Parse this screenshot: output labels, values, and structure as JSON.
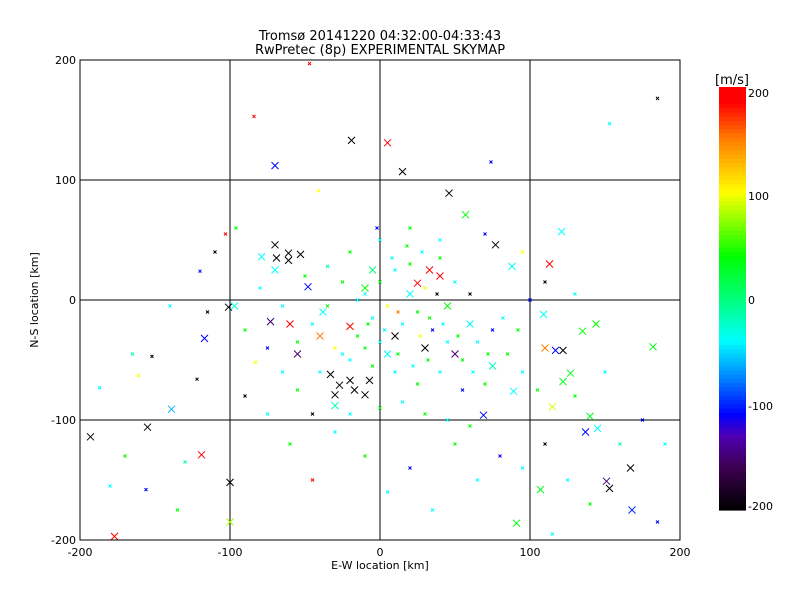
{
  "chart_data": {
    "type": "scatter",
    "title": "Tromsø 20141220 04:32:00-04:33:43",
    "subtitle": "RwPretec (8p) EXPERIMENTAL SKYMAP",
    "xlabel": "E-W location [km]",
    "ylabel": "N-S location [km]",
    "xlim": [
      -200,
      200
    ],
    "ylim": [
      -200,
      200
    ],
    "xticks": [
      "-200",
      "-100",
      "0",
      "100",
      "200"
    ],
    "yticks": [
      "-200",
      "-100",
      "0",
      "100",
      "200"
    ],
    "grid": true,
    "colorbar": {
      "label": "[m/s]",
      "range": [
        -200,
        200
      ],
      "ticks": [
        "200",
        "100",
        "0",
        "-100",
        "-200"
      ],
      "stops": [
        [
          -200,
          "#000000"
        ],
        [
          -160,
          "#3c0050"
        ],
        [
          -130,
          "#5000b4"
        ],
        [
          -110,
          "#0000ff"
        ],
        [
          -70,
          "#0096ff"
        ],
        [
          -40,
          "#00ffff"
        ],
        [
          0,
          "#00ff78"
        ],
        [
          40,
          "#00ff00"
        ],
        [
          100,
          "#ffff00"
        ],
        [
          150,
          "#ff8000"
        ],
        [
          185,
          "#ff0000"
        ],
        [
          200,
          "#ff0000"
        ]
      ]
    },
    "crosses": [
      [
        -177,
        -197,
        200
      ],
      [
        -19,
        133,
        -200
      ],
      [
        5,
        131,
        200
      ],
      [
        -70,
        112,
        -110
      ],
      [
        15,
        107,
        -200
      ],
      [
        46,
        89,
        -200
      ],
      [
        -193,
        -114,
        -200
      ],
      [
        -155,
        -106,
        -200
      ],
      [
        -139,
        -91,
        -60
      ],
      [
        -117,
        -32,
        -110
      ],
      [
        -101,
        -6,
        -200
      ],
      [
        -97,
        -5,
        -30
      ],
      [
        -100,
        -152,
        -200
      ],
      [
        -100,
        -185,
        80
      ],
      [
        -119,
        -129,
        200
      ],
      [
        113,
        30,
        200
      ],
      [
        121,
        57,
        -40
      ],
      [
        167,
        -140,
        -200
      ],
      [
        153,
        -157,
        -200
      ],
      [
        151,
        -151,
        -150
      ],
      [
        168,
        -175,
        -100
      ],
      [
        91,
        -186,
        40
      ],
      [
        107,
        -158,
        30
      ],
      [
        57,
        71,
        40
      ],
      [
        77,
        46,
        -200
      ],
      [
        88,
        28,
        -40
      ],
      [
        109,
        -12,
        -40
      ],
      [
        110,
        -40,
        150
      ],
      [
        122,
        -42,
        -200
      ],
      [
        117,
        -42,
        -110
      ],
      [
        135,
        -26,
        40
      ],
      [
        144,
        -20,
        40
      ],
      [
        182,
        -39,
        40
      ],
      [
        127,
        -61,
        30
      ],
      [
        122,
        -68,
        30
      ],
      [
        140,
        -97,
        30
      ],
      [
        145,
        -107,
        -40
      ],
      [
        137,
        -110,
        -110
      ],
      [
        89,
        -76,
        -40
      ],
      [
        69,
        -96,
        -110
      ],
      [
        115,
        -89,
        90
      ],
      [
        -70,
        46,
        -200
      ],
      [
        -61,
        39,
        -200
      ],
      [
        -53,
        38,
        -200
      ],
      [
        -69,
        35,
        -200
      ],
      [
        -61,
        33,
        -200
      ],
      [
        -70,
        25,
        -40
      ],
      [
        -48,
        11,
        -110
      ],
      [
        -79,
        36,
        -40
      ],
      [
        -33,
        -62,
        -200
      ],
      [
        -27,
        -71,
        -200
      ],
      [
        -17,
        -75,
        -200
      ],
      [
        -10,
        -79,
        -200
      ],
      [
        -20,
        -67,
        -200
      ],
      [
        -30,
        -79,
        -200
      ],
      [
        -7,
        -67,
        -200
      ],
      [
        33,
        25,
        200
      ],
      [
        40,
        20,
        200
      ],
      [
        25,
        14,
        200
      ],
      [
        -20,
        -22,
        200
      ],
      [
        10,
        -30,
        -200
      ],
      [
        30,
        -40,
        -200
      ],
      [
        -55,
        -45,
        -150
      ],
      [
        50,
        -45,
        -150
      ],
      [
        -5,
        25,
        0
      ],
      [
        20,
        5,
        -40
      ],
      [
        60,
        -20,
        -40
      ],
      [
        -40,
        -30,
        150
      ],
      [
        -73,
        -18,
        -150
      ],
      [
        -60,
        -20,
        200
      ],
      [
        75,
        -55,
        -20
      ],
      [
        -38,
        -10,
        -40
      ],
      [
        5,
        -45,
        -40
      ],
      [
        45,
        -5,
        40
      ],
      [
        -10,
        10,
        40
      ],
      [
        -30,
        -88,
        -20
      ]
    ],
    "dots": [
      [
        -84,
        153,
        200
      ],
      [
        -47,
        197,
        200
      ],
      [
        74,
        115,
        -110
      ],
      [
        -41,
        91,
        100
      ],
      [
        153,
        147,
        -40
      ],
      [
        185,
        168,
        -200
      ],
      [
        -156,
        -158,
        -110
      ],
      [
        -187,
        -73,
        -40
      ],
      [
        -161,
        -63,
        100
      ],
      [
        -152,
        -47,
        -200
      ],
      [
        -165,
        -45,
        -20
      ],
      [
        -130,
        -135,
        -20
      ],
      [
        -122,
        -66,
        -200
      ],
      [
        -90,
        -80,
        -200
      ],
      [
        -83,
        -52,
        100
      ],
      [
        -110,
        40,
        -200
      ],
      [
        -103,
        55,
        200
      ],
      [
        -96,
        60,
        40
      ],
      [
        -115,
        -10,
        -200
      ],
      [
        -120,
        24,
        -110
      ],
      [
        -140,
        -5,
        -40
      ],
      [
        -75,
        -95,
        -40
      ],
      [
        -60,
        -120,
        40
      ],
      [
        -45,
        -150,
        200
      ],
      [
        -30,
        -110,
        -40
      ],
      [
        -10,
        -130,
        40
      ],
      [
        5,
        -160,
        -40
      ],
      [
        20,
        -140,
        -110
      ],
      [
        35,
        -175,
        -40
      ],
      [
        50,
        -120,
        40
      ],
      [
        65,
        -150,
        -40
      ],
      [
        80,
        -130,
        -110
      ],
      [
        95,
        -140,
        -40
      ],
      [
        110,
        -120,
        -200
      ],
      [
        125,
        -150,
        -40
      ],
      [
        140,
        -170,
        40
      ],
      [
        160,
        -120,
        -20
      ],
      [
        175,
        -100,
        -110
      ],
      [
        130,
        -80,
        40
      ],
      [
        150,
        -60,
        -40
      ],
      [
        100,
        0,
        -110
      ],
      [
        110,
        15,
        -200
      ],
      [
        130,
        5,
        -40
      ],
      [
        95,
        40,
        100
      ],
      [
        70,
        55,
        -110
      ],
      [
        40,
        50,
        -40
      ],
      [
        20,
        60,
        40
      ],
      [
        0,
        50,
        -40
      ],
      [
        -20,
        40,
        40
      ],
      [
        -35,
        28,
        -20
      ],
      [
        -50,
        20,
        40
      ],
      [
        -80,
        10,
        -40
      ],
      [
        -90,
        -25,
        40
      ],
      [
        -75,
        -40,
        -110
      ],
      [
        -65,
        -60,
        -40
      ],
      [
        -55,
        -75,
        40
      ],
      [
        -45,
        -95,
        -200
      ],
      [
        -25,
        -45,
        -40
      ],
      [
        -15,
        -30,
        40
      ],
      [
        -5,
        -15,
        -40
      ],
      [
        5,
        -5,
        100
      ],
      [
        15,
        -20,
        -40
      ],
      [
        25,
        -10,
        40
      ],
      [
        35,
        -25,
        -110
      ],
      [
        45,
        -35,
        -40
      ],
      [
        55,
        -50,
        40
      ],
      [
        65,
        -35,
        -40
      ],
      [
        75,
        -25,
        -110
      ],
      [
        85,
        -45,
        40
      ],
      [
        95,
        -60,
        -40
      ],
      [
        105,
        -75,
        40
      ],
      [
        -10,
        5,
        -40
      ],
      [
        0,
        15,
        40
      ],
      [
        10,
        25,
        -40
      ],
      [
        20,
        30,
        40
      ],
      [
        30,
        10,
        100
      ],
      [
        40,
        35,
        40
      ],
      [
        50,
        15,
        -40
      ],
      [
        60,
        5,
        -200
      ],
      [
        -25,
        15,
        40
      ],
      [
        -15,
        0,
        -40
      ],
      [
        -35,
        -5,
        40
      ],
      [
        -45,
        -20,
        -40
      ],
      [
        -55,
        -35,
        40
      ],
      [
        -65,
        -5,
        -40
      ],
      [
        -5,
        -55,
        40
      ],
      [
        10,
        -60,
        -40
      ],
      [
        25,
        -70,
        40
      ],
      [
        40,
        -60,
        -40
      ],
      [
        55,
        -75,
        -110
      ],
      [
        70,
        -70,
        40
      ],
      [
        -20,
        -95,
        -40
      ],
      [
        0,
        -90,
        40
      ],
      [
        15,
        -85,
        -40
      ],
      [
        30,
        -95,
        40
      ],
      [
        45,
        -100,
        -40
      ],
      [
        60,
        -105,
        40
      ],
      [
        -40,
        -60,
        -40
      ],
      [
        -30,
        -40,
        100
      ],
      [
        -20,
        -50,
        -40
      ],
      [
        -10,
        -40,
        40
      ],
      [
        0,
        -35,
        -40
      ],
      [
        12,
        -45,
        40
      ],
      [
        22,
        -55,
        -40
      ],
      [
        32,
        -50,
        40
      ],
      [
        42,
        -20,
        -40
      ],
      [
        52,
        -30,
        40
      ],
      [
        62,
        -60,
        -40
      ],
      [
        72,
        -45,
        40
      ],
      [
        82,
        -15,
        -40
      ],
      [
        92,
        -25,
        40
      ],
      [
        8,
        35,
        -40
      ],
      [
        18,
        45,
        40
      ],
      [
        28,
        40,
        -40
      ],
      [
        38,
        5,
        -200
      ],
      [
        -2,
        60,
        -110
      ],
      [
        12,
        -10,
        150
      ],
      [
        -8,
        -20,
        40
      ],
      [
        3,
        -25,
        -40
      ],
      [
        27,
        -30,
        100
      ],
      [
        33,
        -15,
        40
      ],
      [
        -180,
        -155,
        -40
      ],
      [
        -170,
        -130,
        40
      ],
      [
        190,
        -120,
        -40
      ],
      [
        185,
        -185,
        -110
      ],
      [
        -135,
        -175,
        40
      ],
      [
        115,
        -195,
        -40
      ]
    ]
  }
}
